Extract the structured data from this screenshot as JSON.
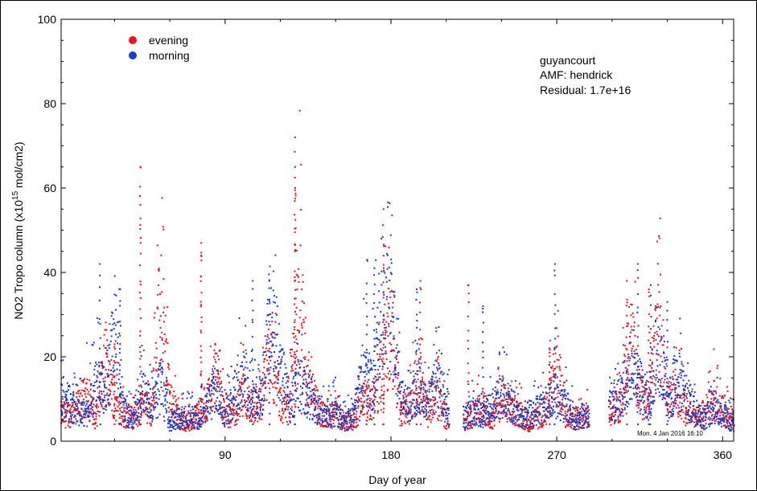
{
  "chart_data": {
    "type": "scatter",
    "xlabel": "Day of year",
    "ylabel": "NO2 Tropo column (x10^15 mol/cm2)",
    "ylabel_parts": {
      "base": "NO2 Tropo column (x10",
      "exp": "15",
      "unit": " mol/cm2)"
    },
    "xlim": [
      1,
      366
    ],
    "ylim": [
      0,
      100
    ],
    "xticks": [
      90,
      180,
      270,
      360
    ],
    "yticks": [
      0,
      20,
      40,
      60,
      80,
      100
    ],
    "legend": {
      "placement": "top-left",
      "entries": [
        "evening",
        "morning"
      ]
    },
    "annotations": [
      "guyancourt",
      "AMF: hendrick",
      "Residual: 1.7e+16"
    ],
    "timestamp": "Mon. 4 Jan 2016 16:10",
    "grid": false,
    "series": [
      {
        "name": "evening",
        "color": "#e8141c",
        "x": [
          5,
          10,
          15,
          20,
          25,
          30,
          35,
          40,
          45,
          50,
          55,
          60,
          65,
          70,
          75,
          80,
          85,
          90,
          95,
          100,
          105,
          110,
          115,
          120,
          125,
          130,
          135,
          140,
          145,
          150,
          155,
          160,
          165,
          170,
          175,
          180,
          185,
          190,
          195,
          200,
          205,
          210,
          220,
          225,
          230,
          235,
          240,
          245,
          250,
          255,
          260,
          265,
          270,
          275,
          280,
          300,
          305,
          310,
          315,
          320,
          325,
          330,
          335,
          340,
          345,
          350,
          355,
          360,
          365
        ],
        "y": [
          7,
          9,
          12,
          6,
          21,
          11,
          7,
          6,
          9,
          8,
          36,
          11,
          6,
          5,
          7,
          10,
          18,
          6,
          8,
          12,
          9,
          11,
          24,
          10,
          8,
          43,
          15,
          9,
          6,
          7,
          5,
          6,
          11,
          9,
          17,
          30,
          8,
          9,
          18,
          7,
          12,
          6,
          5,
          7,
          9,
          6,
          11,
          8,
          7,
          5,
          6,
          9,
          20,
          7,
          6,
          8,
          10,
          28,
          12,
          9,
          33,
          10,
          14,
          8,
          6,
          7,
          11,
          8,
          5
        ],
        "max_points": [
          [
            30,
            23
          ],
          [
            44,
            65
          ],
          [
            44,
            56
          ],
          [
            77,
            47
          ],
          [
            77,
            44
          ],
          [
            128,
            72
          ],
          [
            128,
            65
          ],
          [
            128,
            60
          ],
          [
            176,
            55
          ],
          [
            176,
            44
          ],
          [
            196,
            38
          ],
          [
            222,
            37
          ],
          [
            266,
            22
          ],
          [
            308,
            38
          ],
          [
            320,
            36
          ]
        ]
      },
      {
        "name": "morning",
        "color": "#1a3cc8",
        "x": [
          5,
          10,
          15,
          20,
          25,
          30,
          35,
          40,
          45,
          50,
          55,
          60,
          65,
          70,
          75,
          80,
          85,
          90,
          95,
          100,
          105,
          110,
          115,
          120,
          125,
          130,
          135,
          140,
          145,
          150,
          155,
          160,
          165,
          170,
          175,
          180,
          185,
          190,
          195,
          200,
          205,
          210,
          220,
          225,
          230,
          235,
          240,
          245,
          250,
          255,
          260,
          265,
          270,
          275,
          280,
          300,
          305,
          310,
          315,
          320,
          325,
          330,
          335,
          340,
          345,
          350,
          355,
          360,
          365
        ],
        "y": [
          10,
          8,
          7,
          15,
          13,
          30,
          8,
          6,
          13,
          9,
          14,
          5,
          6,
          7,
          5,
          9,
          14,
          7,
          12,
          18,
          10,
          13,
          34,
          20,
          9,
          15,
          12,
          8,
          6,
          8,
          5,
          7,
          18,
          14,
          38,
          35,
          11,
          10,
          14,
          8,
          16,
          9,
          6,
          8,
          7,
          9,
          12,
          10,
          6,
          7,
          8,
          10,
          12,
          9,
          6,
          9,
          12,
          17,
          15,
          10,
          27,
          9,
          17,
          12,
          8,
          6,
          9,
          7,
          5
        ],
        "max_points": [
          [
            22,
            42
          ],
          [
            33,
            36
          ],
          [
            105,
            38
          ],
          [
            114,
            38
          ],
          [
            167,
            43
          ],
          [
            171,
            41
          ],
          [
            194,
            36
          ],
          [
            230,
            32
          ],
          [
            269,
            42
          ],
          [
            314,
            42
          ],
          [
            321,
            37
          ],
          [
            330,
            33
          ]
        ]
      }
    ],
    "gap_days": [
      [
        212,
        219
      ],
      [
        288,
        298
      ]
    ]
  }
}
